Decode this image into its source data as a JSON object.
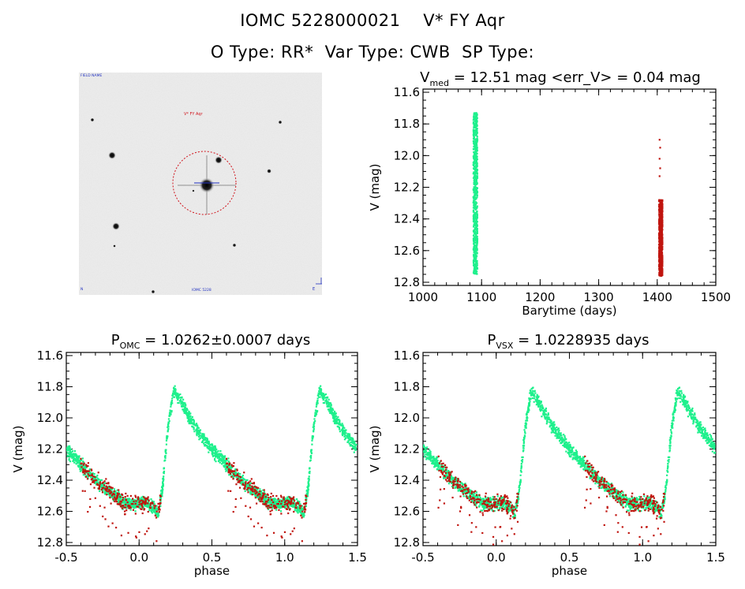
{
  "header": {
    "title": "IOMC 5228000021    V* FY Aqr",
    "subtitle": "O Type: RR*  Var Type: CWB  SP Type:"
  },
  "finder": {
    "top_left_label": "FIELD NAME",
    "target_label": "V* FY Aqr",
    "bottom_label": "IOMC 5228",
    "bottom_left_mark": "N",
    "bottom_right_mark": "E"
  },
  "colors": {
    "omc": "#1ef08c",
    "other": "#c0150f",
    "ink": "#000000"
  },
  "chart_data": [
    {
      "id": "lightcurve",
      "type": "scatter",
      "title": "V_med = 12.51 mag <err_V> = 0.04 mag",
      "title_main": "V",
      "title_sub": "med",
      "title_rest": " = 12.51 mag <err_V> = 0.04 mag",
      "xlabel": "Barytime (days)",
      "ylabel": "V (mag)",
      "xlim": [
        1000,
        1500
      ],
      "ylim": [
        12.82,
        11.58
      ],
      "xticks": [
        1000,
        1100,
        1200,
        1300,
        1400,
        1500
      ],
      "yticks": [
        11.6,
        11.8,
        12.0,
        12.2,
        12.4,
        12.6,
        12.8
      ],
      "series": [
        {
          "color_key": "omc",
          "x_range": [
            1086,
            1093
          ],
          "y_range": [
            11.73,
            12.75
          ]
        },
        {
          "color_key": "other",
          "x_range": [
            1403,
            1409
          ],
          "y_range": [
            12.28,
            12.76
          ],
          "outliers": [
            [
              1404,
              11.9
            ],
            [
              1405,
              11.95
            ],
            [
              1404,
              12.02
            ],
            [
              1405,
              12.08
            ],
            [
              1404,
              12.13
            ]
          ]
        }
      ]
    },
    {
      "id": "phase_omc",
      "type": "scatter",
      "title_main": "P",
      "title_sub": "OMC",
      "title_rest": " = 1.0262±0.0007 days",
      "xlabel": "phase",
      "ylabel": "V (mag)",
      "xlim": [
        -0.5,
        1.5
      ],
      "ylim": [
        12.82,
        11.58
      ],
      "xticks": [
        -0.5,
        0.0,
        0.5,
        1.0,
        1.5
      ],
      "yticks": [
        11.6,
        11.8,
        12.0,
        12.2,
        12.4,
        12.6,
        12.8
      ],
      "phase_curve": [
        [
          0.0,
          12.55
        ],
        [
          0.05,
          12.54
        ],
        [
          0.1,
          12.58
        ],
        [
          0.13,
          12.62
        ],
        [
          0.16,
          12.45
        ],
        [
          0.2,
          12.05
        ],
        [
          0.24,
          11.82
        ],
        [
          0.3,
          11.92
        ],
        [
          0.4,
          12.08
        ],
        [
          0.5,
          12.2
        ],
        [
          0.6,
          12.3
        ],
        [
          0.7,
          12.4
        ],
        [
          0.8,
          12.48
        ],
        [
          0.9,
          12.55
        ],
        [
          1.0,
          12.55
        ]
      ]
    },
    {
      "id": "phase_vsx",
      "type": "scatter",
      "title_main": "P",
      "title_sub": "VSX",
      "title_rest": " = 1.0228935 days",
      "xlabel": "phase",
      "ylabel": "V (mag)",
      "xlim": [
        -0.5,
        1.5
      ],
      "ylim": [
        12.82,
        11.58
      ],
      "xticks": [
        -0.5,
        0.0,
        0.5,
        1.0,
        1.5
      ],
      "yticks": [
        11.6,
        11.8,
        12.0,
        12.2,
        12.4,
        12.6,
        12.8
      ],
      "phase_curve": [
        [
          0.0,
          12.55
        ],
        [
          0.05,
          12.54
        ],
        [
          0.1,
          12.58
        ],
        [
          0.13,
          12.62
        ],
        [
          0.16,
          12.45
        ],
        [
          0.2,
          12.05
        ],
        [
          0.24,
          11.82
        ],
        [
          0.3,
          11.92
        ],
        [
          0.4,
          12.08
        ],
        [
          0.5,
          12.2
        ],
        [
          0.6,
          12.3
        ],
        [
          0.7,
          12.4
        ],
        [
          0.8,
          12.48
        ],
        [
          0.9,
          12.55
        ],
        [
          1.0,
          12.55
        ]
      ]
    }
  ]
}
